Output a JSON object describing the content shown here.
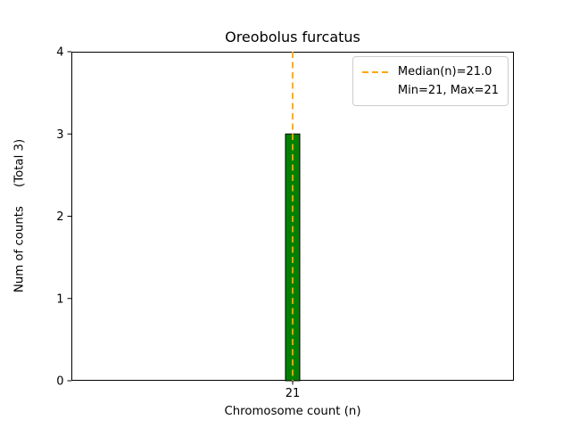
{
  "chart_data": {
    "type": "bar",
    "title": "Oreobolus furcatus",
    "xlabel": "Chromosome count (n)",
    "ylabel": "Num of counts     (Total 3)",
    "categories": [
      "21"
    ],
    "values": [
      3
    ],
    "ylim": [
      0,
      4
    ],
    "yticks": [
      0,
      1,
      2,
      3,
      4
    ],
    "grid": false,
    "bar_color": "#008000",
    "bar_edge_color": "#000000",
    "median_line": {
      "x": 21,
      "color": "#FFA500",
      "style": "dashed"
    },
    "stats": {
      "total": 3,
      "median": 21.0,
      "min": 21,
      "max": 21
    },
    "legend": {
      "position": "upper-right",
      "entries": [
        {
          "sample": "dashed-line",
          "color": "#FFA500",
          "label": "Median(n)=21.0"
        },
        {
          "sample": "none",
          "label": "Min=21, Max=21"
        }
      ]
    }
  }
}
